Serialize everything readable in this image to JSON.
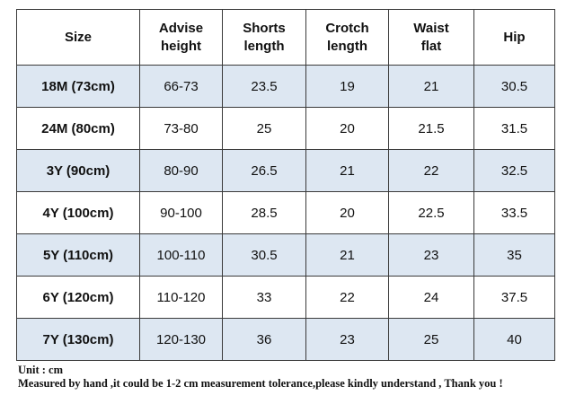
{
  "table": {
    "header": [
      "Size",
      "Advise height",
      "Shorts length",
      "Crotch length",
      "Waist flat",
      "Hip"
    ],
    "rows": [
      [
        "18M (73cm)",
        "66-73",
        "23.5",
        "19",
        "21",
        "30.5"
      ],
      [
        "24M (80cm)",
        "73-80",
        "25",
        "20",
        "21.5",
        "31.5"
      ],
      [
        "3Y (90cm)",
        "80-90",
        "26.5",
        "21",
        "22",
        "32.5"
      ],
      [
        "4Y (100cm)",
        "90-100",
        "28.5",
        "20",
        "22.5",
        "33.5"
      ],
      [
        "5Y (110cm)",
        "100-110",
        "30.5",
        "21",
        "23",
        "35"
      ],
      [
        "6Y (120cm)",
        "110-120",
        "33",
        "22",
        "24",
        "37.5"
      ],
      [
        "7Y (130cm)",
        "120-130",
        "36",
        "23",
        "25",
        "40"
      ]
    ]
  },
  "footer": {
    "unit": "Unit : cm",
    "note": "Measured by hand ,it could be 1-2 cm measurement tolerance,please kindly understand , Thank you !"
  }
}
